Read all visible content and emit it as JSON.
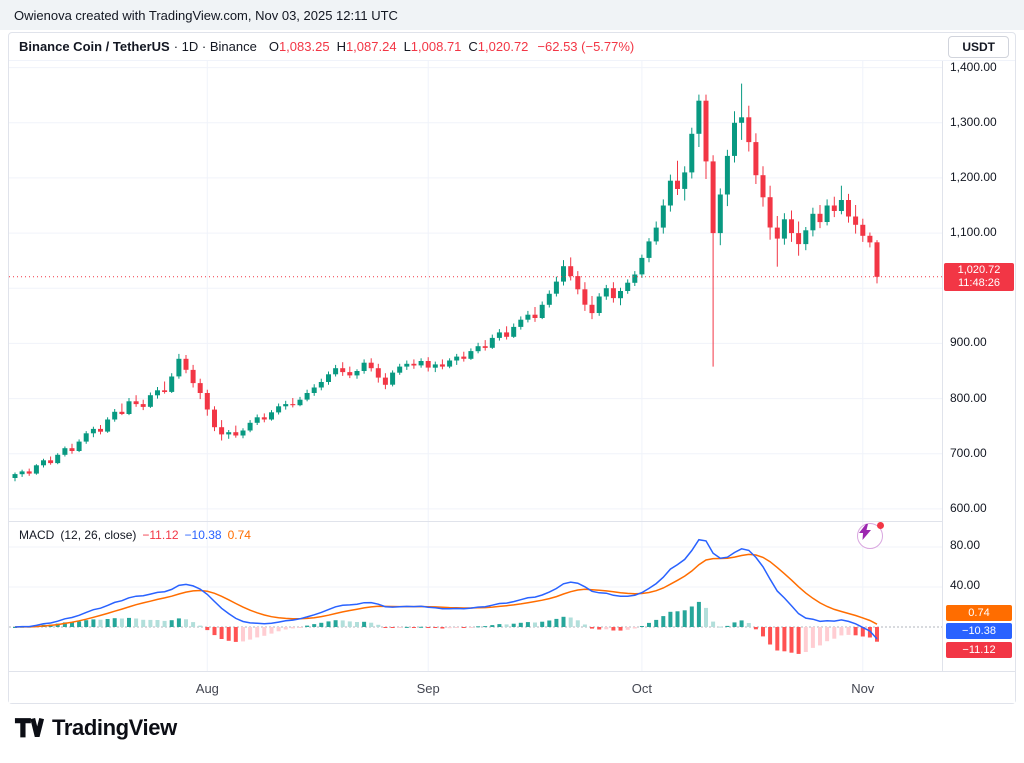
{
  "attribution": {
    "text": "Owienova created with TradingView.com, Nov 03, 2025 12:11 UTC"
  },
  "header": {
    "symbol_title": "Binance Coin / TetherUS",
    "meta": "· 1D · Binance",
    "ohlc": [
      {
        "label": "O",
        "value": "1,083.25"
      },
      {
        "label": "H",
        "value": "1,087.24"
      },
      {
        "label": "L",
        "value": "1,008.71"
      },
      {
        "label": "C",
        "value": "1,020.72"
      }
    ],
    "change": "−62.53 (−5.77%)",
    "currency_button": "USDT"
  },
  "price_scale": {
    "ticks": [
      {
        "value": 1400,
        "label": "1,400.00"
      },
      {
        "value": 1300,
        "label": "1,300.00"
      },
      {
        "value": 1200,
        "label": "1,200.00"
      },
      {
        "value": 1100,
        "label": "1,100.00"
      },
      {
        "value": 900,
        "label": "900.00"
      },
      {
        "value": 800,
        "label": "800.00"
      },
      {
        "value": 700,
        "label": "700.00"
      },
      {
        "value": 600,
        "label": "600.00"
      }
    ],
    "current_price_badge": {
      "price": "1,020.72",
      "countdown": "11:48:26",
      "color": "#f23645"
    }
  },
  "macd": {
    "title": "MACD",
    "params": "(12, 26, close)",
    "values": {
      "histogram": "−11.12",
      "macd": "−10.38",
      "signal": "0.74"
    },
    "badges": [
      {
        "value": "0.74",
        "color": "#ff6d00"
      },
      {
        "value": "−10.38",
        "color": "#2962ff"
      },
      {
        "value": "−11.12",
        "color": "#f23645"
      }
    ],
    "axis_ticks": [
      {
        "value": 80,
        "label": "80.00"
      },
      {
        "value": 40,
        "label": "40.00"
      }
    ]
  },
  "time_axis": {
    "labels": [
      {
        "label": "Aug",
        "index": 27
      },
      {
        "label": "Sep",
        "index": 58
      },
      {
        "label": "Oct",
        "index": 88
      },
      {
        "label": "Nov",
        "index": 119
      }
    ]
  },
  "footer": {
    "brand": "TradingView"
  },
  "colors": {
    "up": "#089981",
    "down": "#f23645",
    "macd": "#2962ff",
    "signal": "#ff6d00",
    "hist_up": "#26a69a",
    "hist_up_fade": "#b2dfdb",
    "hist_down": "#ff5252",
    "hist_down_fade": "#ffcdd2",
    "grid": "#f0f3fa",
    "last_price_line": "#f23645"
  },
  "chart_data": [
    {
      "type": "candlestick",
      "title": "Binance Coin / TetherUS, 1D, Binance",
      "ylabel": "Price (USDT)",
      "ylim": [
        578,
        1412
      ],
      "y_ticks": [
        600,
        700,
        800,
        900,
        1000,
        1100,
        1200,
        1300,
        1400
      ],
      "x_month_starts": {
        "Aug": 27,
        "Sep": 58,
        "Oct": 88,
        "Nov": 119
      },
      "last_close": 1020.72,
      "candles_format": [
        "open",
        "high",
        "low",
        "close"
      ],
      "candles": [
        [
          656,
          666,
          650,
          663
        ],
        [
          663,
          671,
          658,
          668
        ],
        [
          668,
          673,
          660,
          664
        ],
        [
          664,
          681,
          662,
          679
        ],
        [
          679,
          691,
          675,
          688
        ],
        [
          688,
          695,
          680,
          683
        ],
        [
          683,
          701,
          681,
          698
        ],
        [
          698,
          713,
          695,
          710
        ],
        [
          710,
          718,
          700,
          705
        ],
        [
          705,
          726,
          703,
          722
        ],
        [
          722,
          741,
          718,
          737
        ],
        [
          737,
          749,
          730,
          745
        ],
        [
          745,
          752,
          735,
          740
        ],
        [
          740,
          766,
          738,
          762
        ],
        [
          762,
          781,
          758,
          776
        ],
        [
          776,
          791,
          770,
          772
        ],
        [
          772,
          801,
          770,
          795
        ],
        [
          795,
          806,
          785,
          790
        ],
        [
          790,
          798,
          779,
          785
        ],
        [
          785,
          811,
          783,
          806
        ],
        [
          806,
          821,
          800,
          815
        ],
        [
          815,
          831,
          809,
          812
        ],
        [
          812,
          846,
          810,
          840
        ],
        [
          840,
          881,
          836,
          872
        ],
        [
          872,
          879,
          846,
          852
        ],
        [
          852,
          861,
          820,
          828
        ],
        [
          828,
          836,
          799,
          810
        ],
        [
          810,
          816,
          769,
          780
        ],
        [
          780,
          786,
          741,
          748
        ],
        [
          748,
          761,
          724,
          735
        ],
        [
          735,
          743,
          727,
          739
        ],
        [
          739,
          751,
          729,
          733
        ],
        [
          733,
          746,
          728,
          742
        ],
        [
          742,
          761,
          739,
          756
        ],
        [
          756,
          771,
          752,
          766
        ],
        [
          766,
          773,
          757,
          762
        ],
        [
          762,
          779,
          760,
          775
        ],
        [
          775,
          791,
          771,
          786
        ],
        [
          786,
          796,
          780,
          790
        ],
        [
          790,
          801,
          784,
          788
        ],
        [
          788,
          803,
          786,
          798
        ],
        [
          798,
          816,
          795,
          810
        ],
        [
          810,
          826,
          805,
          820
        ],
        [
          820,
          836,
          815,
          830
        ],
        [
          830,
          849,
          825,
          844
        ],
        [
          844,
          861,
          840,
          855
        ],
        [
          855,
          866,
          841,
          848
        ],
        [
          848,
          858,
          837,
          842
        ],
        [
          842,
          853,
          836,
          850
        ],
        [
          850,
          871,
          845,
          865
        ],
        [
          865,
          873,
          849,
          855
        ],
        [
          855,
          863,
          829,
          838
        ],
        [
          838,
          846,
          817,
          825
        ],
        [
          825,
          851,
          822,
          847
        ],
        [
          847,
          863,
          843,
          858
        ],
        [
          858,
          869,
          852,
          863
        ],
        [
          863,
          871,
          854,
          860
        ],
        [
          860,
          873,
          856,
          868
        ],
        [
          868,
          875,
          849,
          856
        ],
        [
          856,
          867,
          848,
          862
        ],
        [
          862,
          871,
          853,
          858
        ],
        [
          858,
          873,
          855,
          869
        ],
        [
          869,
          881,
          861,
          876
        ],
        [
          876,
          885,
          867,
          872
        ],
        [
          872,
          891,
          870,
          886
        ],
        [
          886,
          901,
          882,
          895
        ],
        [
          895,
          906,
          887,
          892
        ],
        [
          892,
          916,
          890,
          910
        ],
        [
          910,
          926,
          905,
          920
        ],
        [
          920,
          931,
          907,
          912
        ],
        [
          912,
          936,
          910,
          930
        ],
        [
          930,
          949,
          925,
          943
        ],
        [
          943,
          959,
          938,
          952
        ],
        [
          952,
          966,
          939,
          946
        ],
        [
          946,
          976,
          944,
          970
        ],
        [
          970,
          996,
          965,
          990
        ],
        [
          990,
          1021,
          985,
          1012
        ],
        [
          1012,
          1051,
          1005,
          1040
        ],
        [
          1040,
          1056,
          1014,
          1022
        ],
        [
          1022,
          1031,
          989,
          998
        ],
        [
          998,
          1011,
          959,
          970
        ],
        [
          970,
          986,
          944,
          955
        ],
        [
          955,
          991,
          950,
          985
        ],
        [
          985,
          1006,
          979,
          1000
        ],
        [
          1000,
          1011,
          974,
          982
        ],
        [
          982,
          1001,
          969,
          995
        ],
        [
          995,
          1016,
          990,
          1010
        ],
        [
          1010,
          1031,
          1004,
          1025
        ],
        [
          1025,
          1061,
          1019,
          1055
        ],
        [
          1055,
          1091,
          1047,
          1085
        ],
        [
          1085,
          1121,
          1079,
          1110
        ],
        [
          1110,
          1161,
          1099,
          1150
        ],
        [
          1150,
          1206,
          1139,
          1195
        ],
        [
          1195,
          1231,
          1169,
          1180
        ],
        [
          1180,
          1221,
          1159,
          1210
        ],
        [
          1210,
          1291,
          1199,
          1280
        ],
        [
          1280,
          1351,
          1256,
          1340
        ],
        [
          1340,
          1351,
          1198,
          1230
        ],
        [
          1230,
          1241,
          858,
          1100
        ],
        [
          1100,
          1181,
          1078,
          1170
        ],
        [
          1170,
          1251,
          1149,
          1240
        ],
        [
          1240,
          1321,
          1228,
          1300
        ],
        [
          1300,
          1371,
          1269,
          1310
        ],
        [
          1310,
          1331,
          1248,
          1265
        ],
        [
          1265,
          1281,
          1189,
          1205
        ],
        [
          1205,
          1221,
          1148,
          1165
        ],
        [
          1165,
          1186,
          1088,
          1110
        ],
        [
          1110,
          1131,
          1039,
          1090
        ],
        [
          1090,
          1136,
          1079,
          1125
        ],
        [
          1125,
          1141,
          1084,
          1100
        ],
        [
          1100,
          1121,
          1059,
          1080
        ],
        [
          1080,
          1111,
          1069,
          1105
        ],
        [
          1105,
          1146,
          1094,
          1135
        ],
        [
          1135,
          1151,
          1109,
          1120
        ],
        [
          1120,
          1161,
          1114,
          1150
        ],
        [
          1150,
          1166,
          1129,
          1140
        ],
        [
          1140,
          1186,
          1134,
          1160
        ],
        [
          1160,
          1171,
          1119,
          1130
        ],
        [
          1130,
          1151,
          1099,
          1115
        ],
        [
          1115,
          1126,
          1084,
          1095
        ],
        [
          1095,
          1101,
          1074,
          1083
        ],
        [
          1083.25,
          1087.24,
          1008.71,
          1020.72
        ]
      ]
    },
    {
      "type": "macd",
      "title": "MACD (12, 26, close)",
      "params": {
        "fast": 12,
        "slow": 26,
        "signal": 9
      },
      "ylim": [
        -45,
        105
      ],
      "y_ticks": [
        80,
        40,
        0
      ],
      "last": {
        "macd": -10.38,
        "signal": 0.74,
        "histogram": -11.12
      }
    }
  ]
}
